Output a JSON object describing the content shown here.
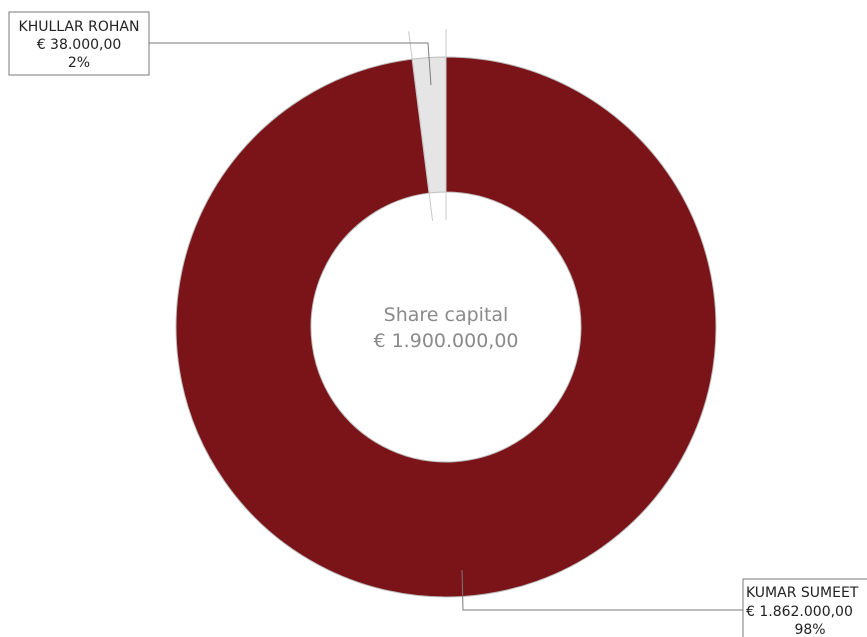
{
  "chart_data": {
    "type": "donut",
    "center_label": {
      "title": "Share capital",
      "total": "€ 1.900.000,00"
    },
    "slices": [
      {
        "label": "KHULLAR ROHAN",
        "value": 38000,
        "value_label": "€ 38.000,00",
        "percent_label": "2%",
        "color": "#e5e5e5"
      },
      {
        "label": "KUMAR SUMEET",
        "value": 1862000,
        "value_label": "€ 1.862.000,00",
        "percent_label": "98%",
        "color": "#7a1418"
      }
    ]
  }
}
